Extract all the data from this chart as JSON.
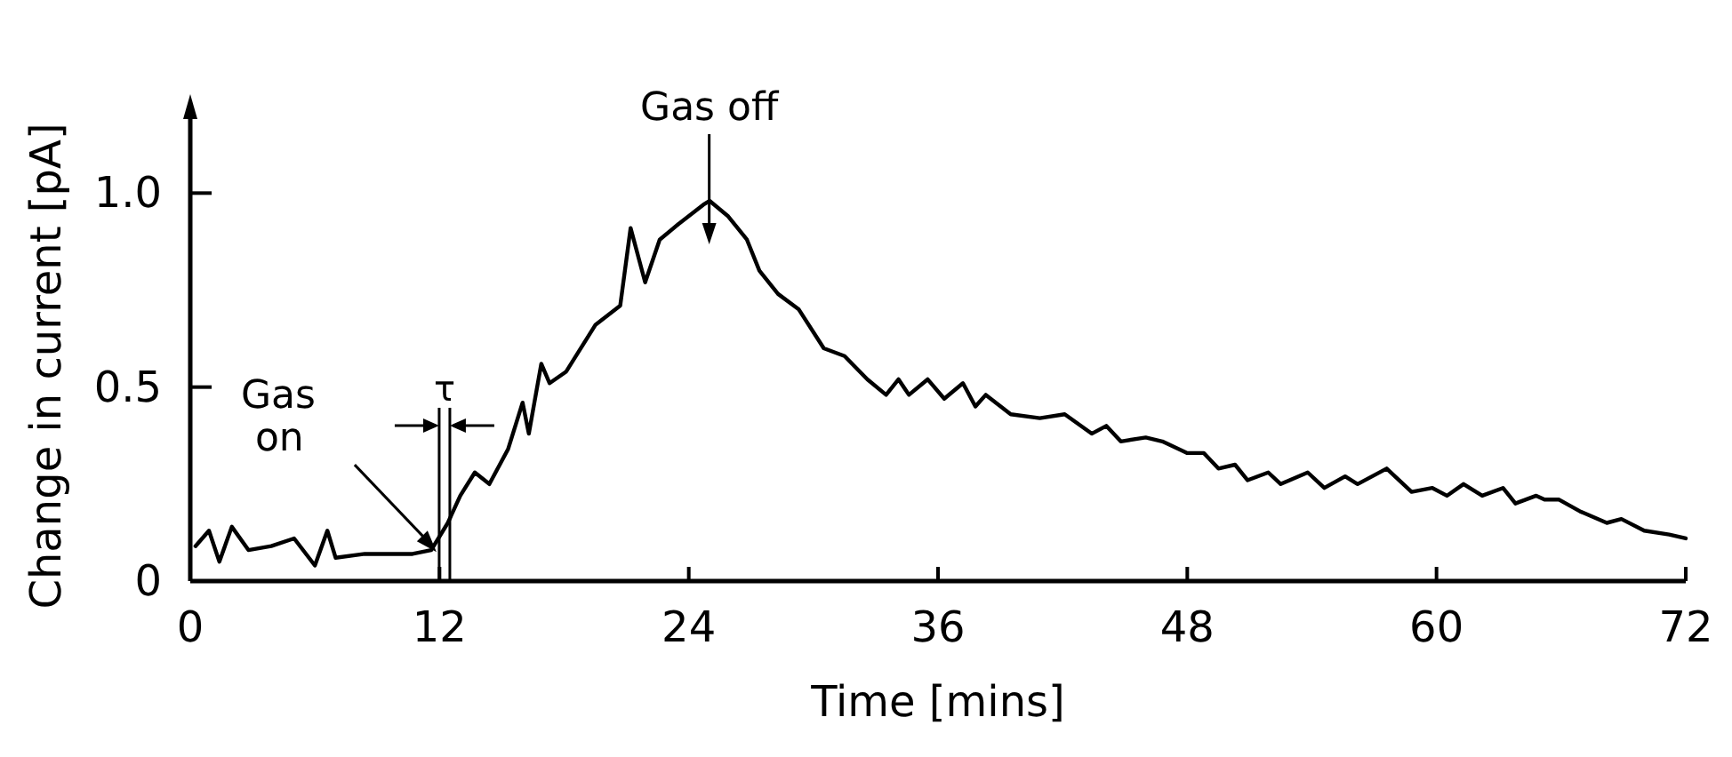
{
  "chart_data": {
    "type": "line",
    "xlabel": "Time [mins]",
    "ylabel": "Change in current [pA]",
    "xlim": [
      0,
      72
    ],
    "ylim": [
      0,
      1.2
    ],
    "xticks": [
      0,
      12,
      24,
      36,
      48,
      60,
      72
    ],
    "yticks": [
      0,
      {
        "value": 0.5,
        "label": "0.5"
      },
      {
        "value": 1,
        "label": "1.0"
      }
    ],
    "marker": "none",
    "line_style": "solid",
    "annotations": [
      "Gas off",
      "Gas on",
      "τ"
    ],
    "series": [
      {
        "color": "#000000",
        "x": [
          0.25,
          0.9,
          1.4,
          2.0,
          2.8,
          3.9,
          5.0,
          6.0,
          6.6,
          7.0,
          8.4,
          10.7,
          11.6,
          12.4,
          13.0,
          13.7,
          14.4,
          15.3,
          16.0,
          16.3,
          16.9,
          17.3,
          18.1,
          19.5,
          20.7,
          21.2,
          21.9,
          22.6,
          23.5,
          24.7,
          25.0,
          25.9,
          26.8,
          27.4,
          28.3,
          29.3,
          30.5,
          31.5,
          32.6,
          33.5,
          34.1,
          34.6,
          35.5,
          36.3,
          37.2,
          37.8,
          38.3,
          39.5,
          40.9,
          42.1,
          43.4,
          44.1,
          44.8,
          46.0,
          46.8,
          48.0,
          48.8,
          49.5,
          50.3,
          50.9,
          51.9,
          52.5,
          53.8,
          54.6,
          55.6,
          56.2,
          57.6,
          58.8,
          59.8,
          60.5,
          61.3,
          62.2,
          63.2,
          63.8,
          64.8,
          65.2,
          65.9,
          66.9,
          68.2,
          68.9,
          70.0,
          71.2,
          72.0
        ],
        "values": [
          0.09,
          0.13,
          0.05,
          0.14,
          0.08,
          0.09,
          0.11,
          0.04,
          0.13,
          0.06,
          0.07,
          0.07,
          0.08,
          0.15,
          0.22,
          0.28,
          0.25,
          0.34,
          0.46,
          0.38,
          0.56,
          0.51,
          0.54,
          0.66,
          0.71,
          0.91,
          0.77,
          0.88,
          0.92,
          0.97,
          0.98,
          0.94,
          0.88,
          0.8,
          0.74,
          0.7,
          0.6,
          0.58,
          0.52,
          0.48,
          0.52,
          0.48,
          0.52,
          0.47,
          0.51,
          0.45,
          0.48,
          0.43,
          0.42,
          0.43,
          0.38,
          0.4,
          0.36,
          0.37,
          0.36,
          0.33,
          0.33,
          0.29,
          0.3,
          0.26,
          0.28,
          0.25,
          0.28,
          0.24,
          0.27,
          0.25,
          0.29,
          0.23,
          0.24,
          0.22,
          0.25,
          0.22,
          0.24,
          0.2,
          0.22,
          0.21,
          0.21,
          0.18,
          0.15,
          0.16,
          0.13,
          0.12,
          0.11
        ]
      }
    ]
  }
}
